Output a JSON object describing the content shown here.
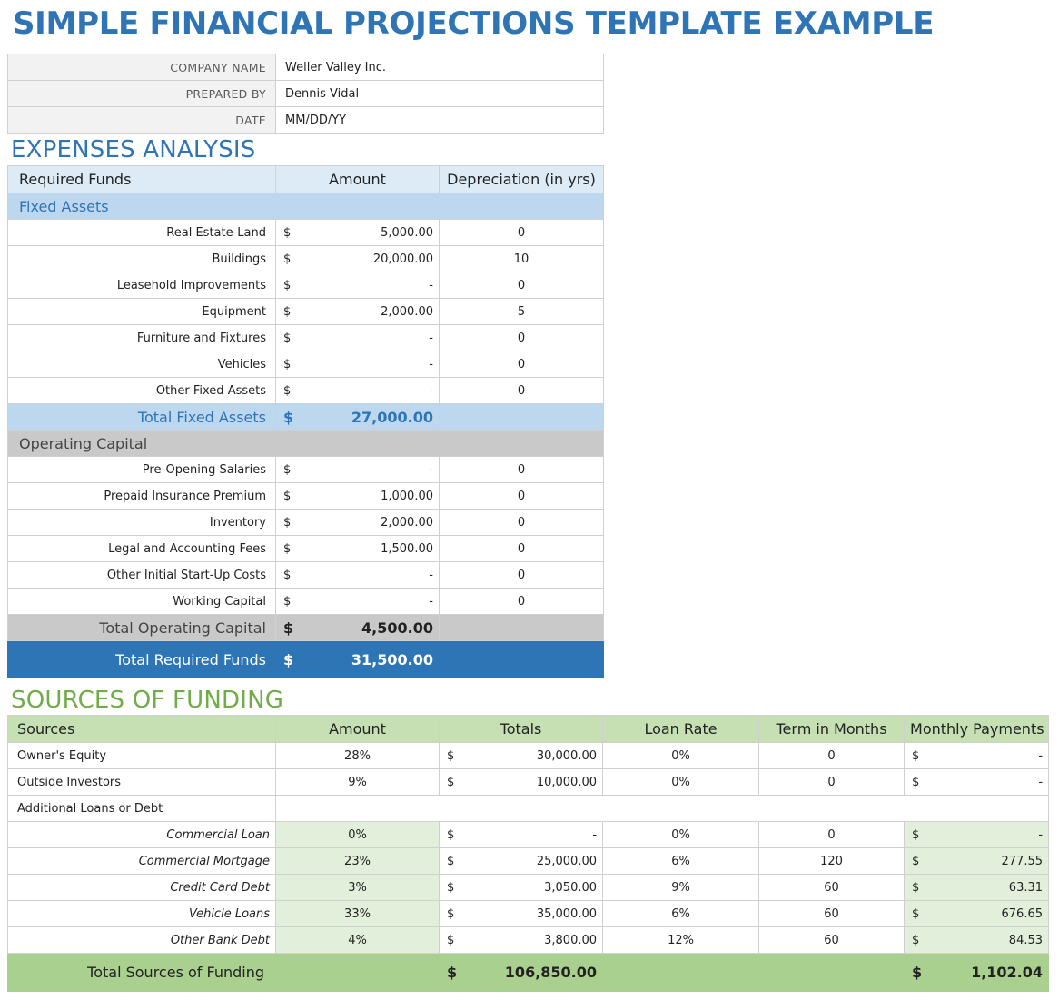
{
  "title": "SIMPLE FINANCIAL PROJECTIONS TEMPLATE EXAMPLE",
  "meta": [
    {
      "label": "COMPANY NAME",
      "value": "Weller Valley Inc."
    },
    {
      "label": "PREPARED BY",
      "value": "Dennis Vidal"
    },
    {
      "label": "DATE",
      "value": "MM/DD/YY"
    }
  ],
  "expenses": {
    "title": "EXPENSES ANALYSIS",
    "headers": {
      "funds": "Required Funds",
      "amount": "Amount",
      "depreciation": "Depreciation (in yrs)"
    },
    "fixed_label": "Fixed Assets",
    "fixed": [
      {
        "name": "Real Estate-Land",
        "cur": "$",
        "amount": "5,000.00",
        "dep": "0"
      },
      {
        "name": "Buildings",
        "cur": "$",
        "amount": "20,000.00",
        "dep": "10"
      },
      {
        "name": "Leasehold Improvements",
        "cur": "$",
        "amount": "-",
        "dep": "0"
      },
      {
        "name": "Equipment",
        "cur": "$",
        "amount": "2,000.00",
        "dep": "5"
      },
      {
        "name": "Furniture and Fixtures",
        "cur": "$",
        "amount": "-",
        "dep": "0"
      },
      {
        "name": "Vehicles",
        "cur": "$",
        "amount": "-",
        "dep": "0"
      },
      {
        "name": "Other Fixed Assets",
        "cur": "$",
        "amount": "-",
        "dep": "0"
      }
    ],
    "total_fixed": {
      "label": "Total Fixed Assets",
      "cur": "$",
      "amount": "27,000.00"
    },
    "operating_label": "Operating Capital",
    "operating": [
      {
        "name": "Pre-Opening Salaries",
        "cur": "$",
        "amount": "-",
        "dep": "0"
      },
      {
        "name": "Prepaid Insurance Premium",
        "cur": "$",
        "amount": "1,000.00",
        "dep": "0"
      },
      {
        "name": "Inventory",
        "cur": "$",
        "amount": "2,000.00",
        "dep": "0"
      },
      {
        "name": "Legal and Accounting Fees",
        "cur": "$",
        "amount": "1,500.00",
        "dep": "0"
      },
      {
        "name": "Other Initial Start-Up Costs",
        "cur": "$",
        "amount": "-",
        "dep": "0"
      },
      {
        "name": "Working Capital",
        "cur": "$",
        "amount": "-",
        "dep": "0"
      }
    ],
    "total_operating": {
      "label": "Total Operating Capital",
      "cur": "$",
      "amount": "4,500.00"
    },
    "total_required": {
      "label": "Total Required Funds",
      "cur": "$",
      "amount": "31,500.00"
    }
  },
  "funding": {
    "title": "SOURCES OF FUNDING",
    "headers": {
      "sources": "Sources",
      "amount": "Amount",
      "totals": "Totals",
      "rate": "Loan Rate",
      "term": "Term in Months",
      "payments": "Monthly Payments"
    },
    "rows": [
      {
        "name": "Owner's Equity",
        "amount": "28%",
        "cur": "$",
        "total": "30,000.00",
        "rate": "0%",
        "term": "0",
        "pcur": "$",
        "payment": "-"
      },
      {
        "name": "Outside Investors",
        "amount": "9%",
        "cur": "$",
        "total": "10,000.00",
        "rate": "0%",
        "term": "0",
        "pcur": "$",
        "payment": "-"
      }
    ],
    "loans_label": "Additional Loans or Debt",
    "loans": [
      {
        "name": "Commercial Loan",
        "amount": "0%",
        "cur": "$",
        "total": "-",
        "rate": "0%",
        "term": "0",
        "pcur": "$",
        "payment": "-"
      },
      {
        "name": "Commercial Mortgage",
        "amount": "23%",
        "cur": "$",
        "total": "25,000.00",
        "rate": "6%",
        "term": "120",
        "pcur": "$",
        "payment": "277.55"
      },
      {
        "name": "Credit Card Debt",
        "amount": "3%",
        "cur": "$",
        "total": "3,050.00",
        "rate": "9%",
        "term": "60",
        "pcur": "$",
        "payment": "63.31"
      },
      {
        "name": "Vehicle Loans",
        "amount": "33%",
        "cur": "$",
        "total": "35,000.00",
        "rate": "6%",
        "term": "60",
        "pcur": "$",
        "payment": "676.65"
      },
      {
        "name": "Other Bank Debt",
        "amount": "4%",
        "cur": "$",
        "total": "3,800.00",
        "rate": "12%",
        "term": "60",
        "pcur": "$",
        "payment": "84.53"
      }
    ],
    "total": {
      "label": "Total Sources of Funding",
      "cur": "$",
      "total": "106,850.00",
      "pcur": "$",
      "payment": "1,102.04"
    }
  }
}
